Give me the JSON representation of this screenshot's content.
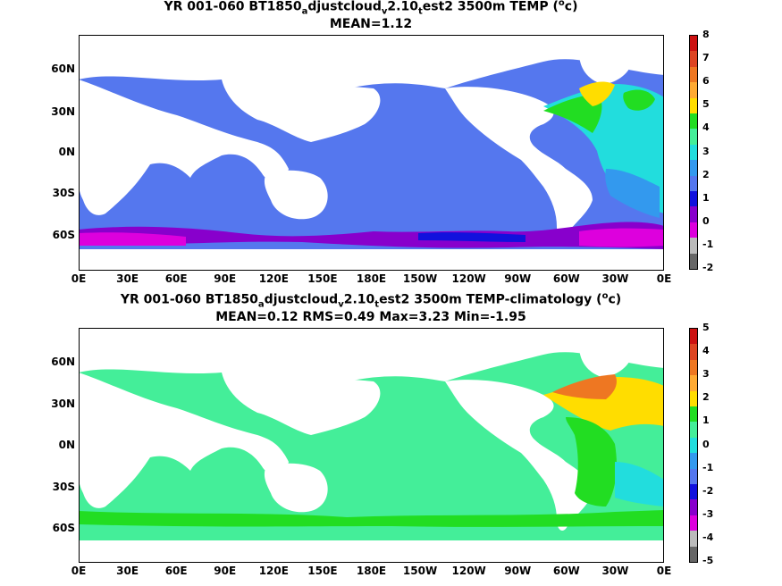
{
  "panels": [
    {
      "title_prefix": "YR 001-060 BT1850",
      "title_sub1": "a",
      "title_mid1": "djustcloud",
      "title_sub2": "v",
      "title_mid2": "2.10",
      "title_sub3": "t",
      "title_suffix": "est2 3500m TEMP",
      "title_unit_open": " (",
      "title_unit_sup": "o",
      "title_unit_close": "c)",
      "stats": "MEAN=1.12",
      "colorbar_labels": [
        "8",
        "7",
        "6",
        "5",
        "4",
        "3",
        "2",
        "1",
        "0",
        "-1",
        "-2"
      ],
      "colorbar_colors": [
        "#cc1111",
        "#dd4422",
        "#ee7722",
        "#ffaa33",
        "#ffdd00",
        "#22dd22",
        "#44ee99",
        "#22dddd",
        "#3399ee",
        "#5577ee",
        "#1111dd",
        "#8800cc",
        "#dd00dd",
        "#bbbbbb",
        "#666666"
      ]
    },
    {
      "title_prefix": "YR 001-060 BT1850",
      "title_sub1": "a",
      "title_mid1": "djustcloud",
      "title_sub2": "v",
      "title_mid2": "2.10",
      "title_sub3": "t",
      "title_suffix": "est2 3500m TEMP-climatology",
      "title_unit_open": " (",
      "title_unit_sup": "o",
      "title_unit_close": "c)",
      "stats": "MEAN=0.12   RMS=0.49   Max=3.23   Min=-1.95",
      "colorbar_labels": [
        "5",
        "4",
        "3",
        "2",
        "1",
        "0",
        "-1",
        "-2",
        "-3",
        "-4",
        "-5"
      ],
      "colorbar_colors": [
        "#cc1111",
        "#dd4422",
        "#ee7722",
        "#ffaa33",
        "#ffdd00",
        "#22dd22",
        "#44ee99",
        "#22dddd",
        "#3399ee",
        "#5577ee",
        "#1111dd",
        "#8800cc",
        "#dd00dd",
        "#bbbbbb",
        "#666666"
      ]
    }
  ],
  "lat_labels": [
    "60N",
    "30N",
    "0N",
    "30S",
    "60S"
  ],
  "lon_labels": [
    "0E",
    "30E",
    "60E",
    "90E",
    "120E",
    "150E",
    "180E",
    "150W",
    "120W",
    "90W",
    "60W",
    "30W",
    "0E"
  ]
}
